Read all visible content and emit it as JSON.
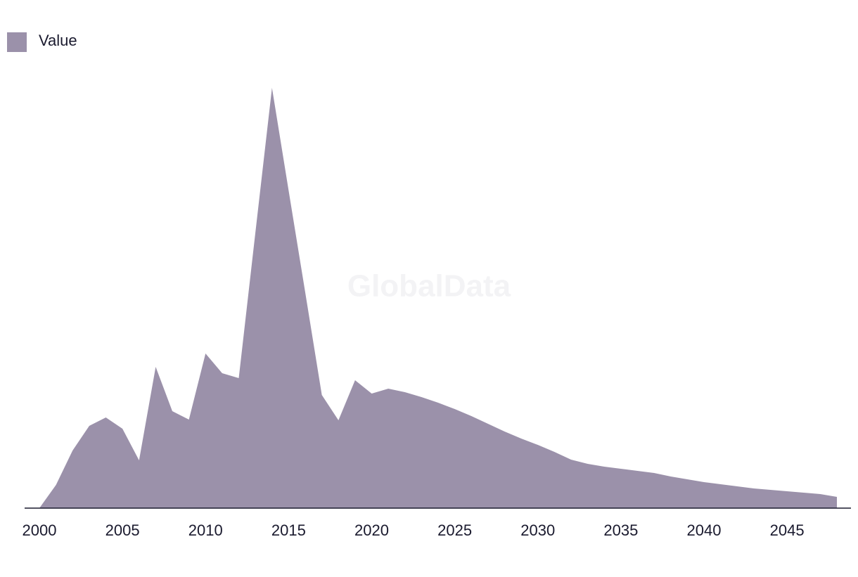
{
  "chart_data": {
    "type": "area",
    "watermark": "GlobalData",
    "x": [
      2000,
      2001,
      2002,
      2003,
      2004,
      2005,
      2006,
      2007,
      2008,
      2009,
      2010,
      2011,
      2012,
      2013,
      2014,
      2015,
      2016,
      2017,
      2018,
      2019,
      2020,
      2021,
      2022,
      2023,
      2024,
      2025,
      2026,
      2027,
      2028,
      2029,
      2030,
      2031,
      2032,
      2033,
      2034,
      2035,
      2036,
      2037,
      2038,
      2039,
      2040,
      2041,
      2042,
      2043,
      2044,
      2045,
      2046,
      2047,
      2048
    ],
    "series": [
      {
        "name": "Value",
        "color": "#9b91aa",
        "values": [
          0,
          33,
          82,
          117,
          129,
          113,
          68,
          201,
          138,
          126,
          220,
          192,
          185,
          392,
          598,
          452,
          307,
          161,
          125,
          182,
          163,
          170,
          165,
          158,
          150,
          141,
          131,
          120,
          109,
          99,
          90,
          80,
          69,
          63,
          59,
          56,
          53,
          50,
          45,
          41,
          37,
          34,
          31,
          28,
          26,
          24,
          22,
          20,
          16
        ]
      }
    ],
    "xlim": [
      2000,
      2048
    ],
    "xticks": [
      2000,
      2005,
      2010,
      2015,
      2020,
      2025,
      2030,
      2035,
      2040,
      2045
    ],
    "ylim": [
      0,
      600
    ],
    "legend": "top-left"
  }
}
